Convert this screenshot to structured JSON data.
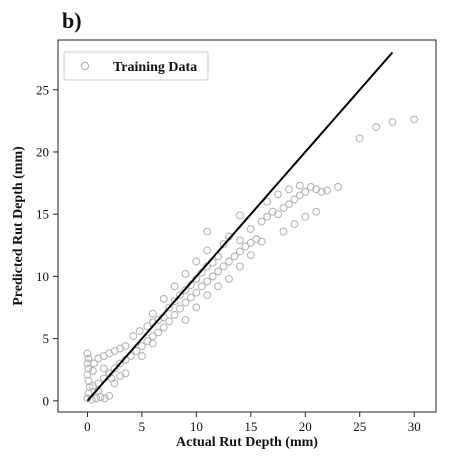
{
  "chart_data": {
    "type": "scatter",
    "panel_label": "b)",
    "xlabel": "Actual Rut Depth (mm)",
    "ylabel": "Predicted Rut Depth (mm)",
    "xlim": [
      -2.7,
      32.0
    ],
    "ylim": [
      -0.9,
      29.0
    ],
    "xticks": [
      0,
      5,
      10,
      15,
      20,
      25,
      30
    ],
    "yticks": [
      0,
      5,
      10,
      15,
      20,
      25
    ],
    "grid": false,
    "legend": {
      "position": "top-left",
      "entries": [
        "Training Data"
      ]
    },
    "series": [
      {
        "name": "Training Data",
        "marker": "circle-open",
        "color": "#b5b5b5",
        "points": [
          [
            0.0,
            0.2
          ],
          [
            0.1,
            0.6
          ],
          [
            0.2,
            1.1
          ],
          [
            0.1,
            1.6
          ],
          [
            0.0,
            2.1
          ],
          [
            0.1,
            2.6
          ],
          [
            0.0,
            3.0
          ],
          [
            0.1,
            3.4
          ],
          [
            0.0,
            3.8
          ],
          [
            0.4,
            0.1
          ],
          [
            0.8,
            0.2
          ],
          [
            1.2,
            0.3
          ],
          [
            1.6,
            0.2
          ],
          [
            2.0,
            0.4
          ],
          [
            1.0,
            0.8
          ],
          [
            0.5,
            1.2
          ],
          [
            1.0,
            1.4
          ],
          [
            1.5,
            1.8
          ],
          [
            2.0,
            2.2
          ],
          [
            2.5,
            2.6
          ],
          [
            3.0,
            3.0
          ],
          [
            3.5,
            3.3
          ],
          [
            4.0,
            3.6
          ],
          [
            1.0,
            3.4
          ],
          [
            1.5,
            3.6
          ],
          [
            2.0,
            3.8
          ],
          [
            2.5,
            4.0
          ],
          [
            3.0,
            4.2
          ],
          [
            3.5,
            4.4
          ],
          [
            4.5,
            4.0
          ],
          [
            5.0,
            4.4
          ],
          [
            5.5,
            4.8
          ],
          [
            6.0,
            5.2
          ],
          [
            6.5,
            5.5
          ],
          [
            7.0,
            5.9
          ],
          [
            4.2,
            5.2
          ],
          [
            4.8,
            5.6
          ],
          [
            5.5,
            6.0
          ],
          [
            6.0,
            6.3
          ],
          [
            6.5,
            6.5
          ],
          [
            7.0,
            6.7
          ],
          [
            7.5,
            6.4
          ],
          [
            8.0,
            6.9
          ],
          [
            8.5,
            7.4
          ],
          [
            9.0,
            7.9
          ],
          [
            9.5,
            8.3
          ],
          [
            10.0,
            8.7
          ],
          [
            7.5,
            7.5
          ],
          [
            8.0,
            8.0
          ],
          [
            8.5,
            8.5
          ],
          [
            9.0,
            8.9
          ],
          [
            9.5,
            9.3
          ],
          [
            10.5,
            9.2
          ],
          [
            11.0,
            9.6
          ],
          [
            11.5,
            10.0
          ],
          [
            12.0,
            10.4
          ],
          [
            12.5,
            10.8
          ],
          [
            13.0,
            11.2
          ],
          [
            10.0,
            9.8
          ],
          [
            10.5,
            10.3
          ],
          [
            11.0,
            10.8
          ],
          [
            11.5,
            11.1
          ],
          [
            12.0,
            11.6
          ],
          [
            13.5,
            11.6
          ],
          [
            14.0,
            12.0
          ],
          [
            14.5,
            12.4
          ],
          [
            15.0,
            12.7
          ],
          [
            15.5,
            13.0
          ],
          [
            14.0,
            12.9
          ],
          [
            15.0,
            13.8
          ],
          [
            16.0,
            14.4
          ],
          [
            16.5,
            14.8
          ],
          [
            17.0,
            15.2
          ],
          [
            17.5,
            15.0
          ],
          [
            18.0,
            15.5
          ],
          [
            18.5,
            15.8
          ],
          [
            19.0,
            16.2
          ],
          [
            19.5,
            16.5
          ],
          [
            20.0,
            16.8
          ],
          [
            16.5,
            16.0
          ],
          [
            17.5,
            16.6
          ],
          [
            18.5,
            17.0
          ],
          [
            19.5,
            17.3
          ],
          [
            20.5,
            17.2
          ],
          [
            21.0,
            17.0
          ],
          [
            21.5,
            16.8
          ],
          [
            22.0,
            16.9
          ],
          [
            23.0,
            17.2
          ],
          [
            20.0,
            14.8
          ],
          [
            21.0,
            15.2
          ],
          [
            19.0,
            14.2
          ],
          [
            18.0,
            13.6
          ],
          [
            16.0,
            12.8
          ],
          [
            11.0,
            8.5
          ],
          [
            12.0,
            9.2
          ],
          [
            13.0,
            9.8
          ],
          [
            14.0,
            10.8
          ],
          [
            15.0,
            11.7
          ],
          [
            9.0,
            6.5
          ],
          [
            10.0,
            7.5
          ],
          [
            6.0,
            4.6
          ],
          [
            5.0,
            3.6
          ],
          [
            3.5,
            2.2
          ],
          [
            2.5,
            1.4
          ],
          [
            8.0,
            9.2
          ],
          [
            9.0,
            10.2
          ],
          [
            10.0,
            11.2
          ],
          [
            11.0,
            12.1
          ],
          [
            12.5,
            12.6
          ],
          [
            11.0,
            13.6
          ],
          [
            14.0,
            14.9
          ],
          [
            13.0,
            13.2
          ],
          [
            7.0,
            8.2
          ],
          [
            6.0,
            7.0
          ],
          [
            1.5,
            2.6
          ],
          [
            2.2,
            1.8
          ],
          [
            3.0,
            2.0
          ],
          [
            0.5,
            2.4
          ],
          [
            0.6,
            3.0
          ],
          [
            25.0,
            21.1
          ],
          [
            26.5,
            22.0
          ],
          [
            28.0,
            22.4
          ],
          [
            30.0,
            22.6
          ]
        ]
      }
    ],
    "reference_line": {
      "x": [
        0,
        28
      ],
      "y": [
        0,
        28
      ],
      "color": "#000000"
    }
  }
}
